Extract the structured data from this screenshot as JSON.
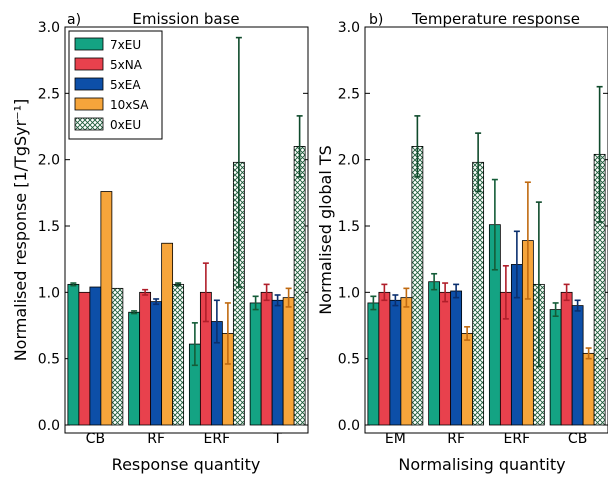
{
  "colors": {
    "7xEU": "#14a383",
    "5xNA": "#e8414d",
    "5xEA": "#0d4fa8",
    "10xSA": "#f6a53b",
    "0xEU": "#1d5c3a",
    "err": {
      "7xEU": "#145c38",
      "5xNA": "#b01e2a",
      "5xEA": "#0a2f6e",
      "10xSA": "#c06a10",
      "0xEU": "#0f4a2b"
    }
  },
  "chart_data": [
    {
      "type": "bar",
      "panel_label": "a)",
      "title": "Emission base",
      "xlabel": "Response quantity",
      "ylabel": "Normalised response [1/TgSyr⁻¹]",
      "ylim": [
        0,
        3.0
      ],
      "yticks": [
        "0.0",
        "0.5",
        "1.0",
        "1.5",
        "2.0",
        "2.5",
        "3.0"
      ],
      "categories": [
        "CB",
        "RF",
        "ERF",
        "T"
      ],
      "legend": {
        "placement": "top-left"
      },
      "series": [
        {
          "name": "7xEU",
          "values": [
            1.06,
            0.85,
            0.61,
            0.92
          ],
          "err": [
            0.01,
            0.01,
            0.16,
            0.05
          ]
        },
        {
          "name": "5xNA",
          "values": [
            1.0,
            1.0,
            1.0,
            1.0
          ],
          "err": [
            0.0,
            0.02,
            0.22,
            0.06
          ]
        },
        {
          "name": "5xEA",
          "values": [
            1.04,
            0.93,
            0.78,
            0.94
          ],
          "err": [
            0.0,
            0.02,
            0.16,
            0.04
          ]
        },
        {
          "name": "10xSA",
          "values": [
            1.76,
            1.37,
            0.69,
            0.96
          ],
          "err": [
            0.0,
            0.0,
            0.23,
            0.07
          ]
        },
        {
          "name": "0xEU",
          "values": [
            1.03,
            1.06,
            1.98,
            2.1
          ],
          "err": [
            0.0,
            0.01,
            0.94,
            0.23
          ]
        }
      ]
    },
    {
      "type": "bar",
      "panel_label": "b)",
      "title": "Temperature response",
      "xlabel": "Normalising quantity",
      "ylabel": "Normalised global TS",
      "ylim": [
        0,
        3.0
      ],
      "yticks": [
        "0.0",
        "0.5",
        "1.0",
        "1.5",
        "2.0",
        "2.5",
        "3.0"
      ],
      "categories": [
        "EM",
        "RF",
        "ERF",
        "CB"
      ],
      "series": [
        {
          "name": "7xEU",
          "values": [
            0.92,
            1.08,
            1.51,
            0.87
          ],
          "err": [
            0.05,
            0.06,
            0.34,
            0.05
          ]
        },
        {
          "name": "5xNA",
          "values": [
            1.0,
            1.0,
            1.0,
            1.0
          ],
          "err": [
            0.06,
            0.07,
            0.2,
            0.06
          ]
        },
        {
          "name": "5xEA",
          "values": [
            0.94,
            1.01,
            1.21,
            0.9
          ],
          "err": [
            0.04,
            0.05,
            0.25,
            0.04
          ]
        },
        {
          "name": "10xSA",
          "values": [
            0.96,
            0.69,
            1.39,
            0.54
          ],
          "err": [
            0.07,
            0.05,
            0.44,
            0.04
          ]
        },
        {
          "name": "0xEU",
          "values": [
            2.1,
            1.98,
            1.06,
            2.04
          ],
          "err": [
            0.23,
            0.22,
            0.62,
            0.51
          ]
        }
      ]
    }
  ]
}
